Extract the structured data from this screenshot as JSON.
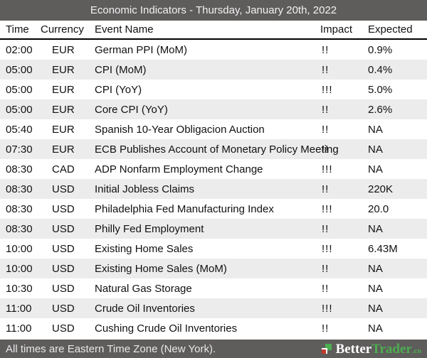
{
  "title": "Economic Indicators - Thursday, January 20th, 2022",
  "table": {
    "columns": {
      "time": "Time",
      "currency": "Currency",
      "event": "Event Name",
      "impact": "Impact",
      "expected": "Expected"
    },
    "rows": [
      {
        "time": "02:00",
        "currency": "EUR",
        "event": "German PPI (MoM)",
        "impact": "!!",
        "expected": "0.9%"
      },
      {
        "time": "05:00",
        "currency": "EUR",
        "event": "CPI (MoM)",
        "impact": "!!",
        "expected": "0.4%"
      },
      {
        "time": "05:00",
        "currency": "EUR",
        "event": "CPI (YoY)",
        "impact": "!!!",
        "expected": "5.0%"
      },
      {
        "time": "05:00",
        "currency": "EUR",
        "event": "Core CPI (YoY)",
        "impact": "!!",
        "expected": "2.6%"
      },
      {
        "time": "05:40",
        "currency": "EUR",
        "event": "Spanish 10-Year Obligacion Auction",
        "impact": "!!",
        "expected": "NA"
      },
      {
        "time": "07:30",
        "currency": "EUR",
        "event": "ECB Publishes Account of Monetary Policy Meeting",
        "impact": "!!",
        "expected": "NA"
      },
      {
        "time": "08:30",
        "currency": "CAD",
        "event": "ADP Nonfarm Employment Change",
        "impact": "!!!",
        "expected": "NA"
      },
      {
        "time": "08:30",
        "currency": "USD",
        "event": "Initial Jobless Claims",
        "impact": "!!",
        "expected": "220K"
      },
      {
        "time": "08:30",
        "currency": "USD",
        "event": "Philadelphia Fed Manufacturing Index",
        "impact": "!!!",
        "expected": "20.0"
      },
      {
        "time": "08:30",
        "currency": "USD",
        "event": "Philly Fed Employment",
        "impact": "!!",
        "expected": "NA"
      },
      {
        "time": "10:00",
        "currency": "USD",
        "event": "Existing Home Sales",
        "impact": "!!!",
        "expected": "6.43M"
      },
      {
        "time": "10:00",
        "currency": "USD",
        "event": "Existing Home Sales (MoM)",
        "impact": "!!",
        "expected": "NA"
      },
      {
        "time": "10:30",
        "currency": "USD",
        "event": "Natural Gas Storage",
        "impact": "!!",
        "expected": "NA"
      },
      {
        "time": "11:00",
        "currency": "USD",
        "event": "Crude Oil Inventories",
        "impact": "!!!",
        "expected": "NA"
      },
      {
        "time": "11:00",
        "currency": "USD",
        "event": "Cushing Crude Oil Inventories",
        "impact": "!!",
        "expected": "NA"
      }
    ]
  },
  "footer": {
    "note": "All times are Eastern Time Zone (New York).",
    "brand": {
      "part1": "Better",
      "part2": "Trader",
      "suffix": ".co"
    }
  },
  "colors": {
    "bar-bg": "#5f5c5c",
    "stripe": "#ececec",
    "brand-green": "#4cae4f",
    "brand-red": "#c0392b"
  }
}
